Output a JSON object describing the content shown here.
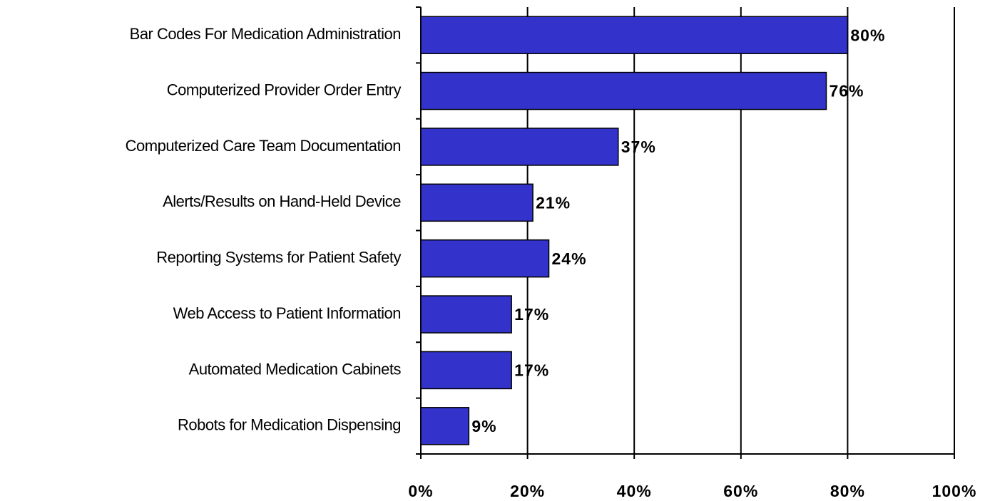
{
  "chart_data": {
    "type": "bar",
    "orientation": "horizontal",
    "categories": [
      "Bar Codes For Medication Administration",
      "Computerized Provider Order Entry",
      "Computerized Care Team Documentation",
      "Alerts/Results on Hand-Held Device",
      "Reporting Systems for Patient Safety",
      "Web Access to Patient Information",
      "Automated Medication Cabinets",
      "Robots for Medication Dispensing"
    ],
    "values": [
      80,
      76,
      37,
      21,
      24,
      17,
      17,
      9
    ],
    "value_labels": [
      "80%",
      "76%",
      "37%",
      "21%",
      "24%",
      "17%",
      "17%",
      "9%"
    ],
    "color": "#3333cc",
    "xlim": [
      0,
      100
    ],
    "xticks": [
      {
        "value": 0,
        "label": "0%"
      },
      {
        "value": 20,
        "label": "20%"
      },
      {
        "value": 40,
        "label": "40%"
      },
      {
        "value": 60,
        "label": "60%"
      },
      {
        "value": 80,
        "label": "80%"
      },
      {
        "value": 100,
        "label": "100%"
      }
    ],
    "grid": true
  }
}
